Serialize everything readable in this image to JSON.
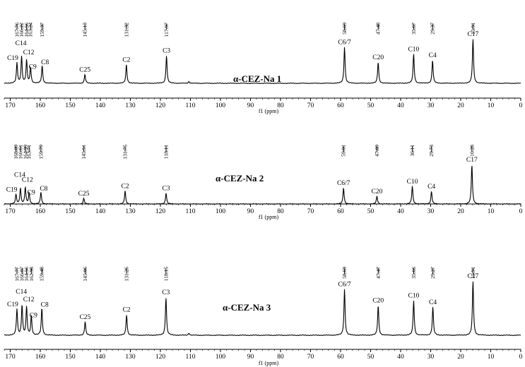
{
  "chart_data": [
    {
      "type": "line",
      "title": "α-CEZ-Na 1",
      "xlabel": "f1 (ppm)",
      "xlim": [
        172,
        0
      ],
      "xticks": [
        170,
        160,
        150,
        140,
        130,
        120,
        110,
        100,
        90,
        80,
        70,
        60,
        50,
        40,
        30,
        20,
        10,
        0
      ],
      "peaks": [
        {
          "label": "C19",
          "ppm": 167.76,
          "tick": "167.76",
          "h": 0.46
        },
        {
          "label": "C14",
          "ppm": 166.22,
          "tick": "166.22",
          "h": 0.6
        },
        {
          "label": "C12",
          "ppm": 164.56,
          "tick": "164.56",
          "h": 0.52
        },
        {
          "label": "C9",
          "ppm": 163.24,
          "tick": "163.24",
          "h": 0.36
        },
        {
          "label": "C8",
          "ppm": 159.37,
          "tick": "159.37",
          "h": 0.4
        },
        {
          "label": "C25",
          "ppm": 145.13,
          "tick": "145.13",
          "h": 0.2
        },
        {
          "label": "C2",
          "ppm": 131.32,
          "tick": "131.32",
          "h": 0.42
        },
        {
          "label": "C3",
          "ppm": 117.97,
          "tick": "117.97",
          "h": 0.63
        },
        {
          "label": "",
          "ppm": 110.5,
          "tick": "",
          "h": 0.04
        },
        {
          "label": "C6/7",
          "ppm": 58.69,
          "tick": "58.69",
          "h": 0.82
        },
        {
          "label": "C20",
          "ppm": 47.48,
          "tick": "47.48",
          "h": 0.48
        },
        {
          "label": "C10",
          "ppm": 35.67,
          "tick": "35.67",
          "h": 0.66
        },
        {
          "label": "C4",
          "ppm": 29.37,
          "tick": "29.37",
          "h": 0.52
        },
        {
          "label": "C17",
          "ppm": 15.91,
          "tick": "15.91",
          "h": 1.0
        }
      ]
    },
    {
      "type": "line",
      "title": "α-CEZ-Na 2",
      "xlabel": "f1 (ppm)",
      "xlim": [
        172,
        0
      ],
      "xticks": [
        170,
        160,
        150,
        140,
        130,
        120,
        110,
        100,
        90,
        80,
        70,
        60,
        50,
        40,
        30,
        20,
        10,
        0
      ],
      "peaks": [
        {
          "label": "C19",
          "ppm": 168.09,
          "tick": "168.09",
          "h": 0.24
        },
        {
          "label": "C14",
          "ppm": 166.61,
          "tick": "166.61",
          "h": 0.4
        },
        {
          "label": "C12",
          "ppm": 164.99,
          "tick": "164.99",
          "h": 0.42
        },
        {
          "label": "C9",
          "ppm": 163.71,
          "tick": "163.71",
          "h": 0.28
        },
        {
          "label": "C8",
          "ppm": 159.79,
          "tick": "159.79",
          "h": 0.3
        },
        {
          "label": "C25",
          "ppm": 145.51,
          "tick": "145.51",
          "h": 0.14
        },
        {
          "label": "C2",
          "ppm": 131.75,
          "tick": "131.75",
          "h": 0.33
        },
        {
          "label": "C3",
          "ppm": 118.11,
          "tick": "118.11",
          "h": 0.28
        },
        {
          "label": "C6/7",
          "ppm": 59.01,
          "tick": "59.01",
          "h": 0.41
        },
        {
          "label": "C20",
          "ppm": 47.89,
          "tick": "47.89",
          "h": 0.2
        },
        {
          "label": "C10",
          "ppm": 36.11,
          "tick": "36.11",
          "h": 0.45
        },
        {
          "label": "C4",
          "ppm": 29.73,
          "tick": "29.73",
          "h": 0.32
        },
        {
          "label": "C17",
          "ppm": 16.28,
          "tick": "16.28",
          "h": 1.0
        }
      ]
    },
    {
      "type": "line",
      "title": "α-CEZ-Na 3",
      "xlabel": "f1 (ppm)",
      "xlim": [
        172,
        0
      ],
      "xticks": [
        170,
        160,
        150,
        140,
        130,
        120,
        110,
        100,
        90,
        80,
        70,
        60,
        50,
        40,
        30,
        20,
        10,
        0
      ],
      "peaks": [
        {
          "label": "C19",
          "ppm": 167.77,
          "tick": "167.77",
          "h": 0.48
        },
        {
          "label": "C14",
          "ppm": 166.07,
          "tick": "166.07",
          "h": 0.56
        },
        {
          "label": "C12",
          "ppm": 164.56,
          "tick": "164.56",
          "h": 0.52
        },
        {
          "label": "C9",
          "ppm": 162.98,
          "tick": "162.98",
          "h": 0.36
        },
        {
          "label": "C8",
          "ppm": 159.48,
          "tick": "159.48",
          "h": 0.5
        },
        {
          "label": "C25",
          "ppm": 145.06,
          "tick": "145.06",
          "h": 0.25
        },
        {
          "label": "C2",
          "ppm": 131.26,
          "tick": "131.26",
          "h": 0.38
        },
        {
          "label": "C3",
          "ppm": 118.15,
          "tick": "118.15",
          "h": 0.7
        },
        {
          "label": "",
          "ppm": 110.5,
          "tick": "",
          "h": 0.04
        },
        {
          "label": "C6/7",
          "ppm": 58.69,
          "tick": "58.69",
          "h": 0.85
        },
        {
          "label": "C20",
          "ppm": 47.47,
          "tick": "47.47",
          "h": 0.55
        },
        {
          "label": "C10",
          "ppm": 35.66,
          "tick": "35.66",
          "h": 0.64
        },
        {
          "label": "C4",
          "ppm": 29.27,
          "tick": "29.27",
          "h": 0.52
        },
        {
          "label": "C17",
          "ppm": 15.91,
          "tick": "15.91",
          "h": 1.0
        }
      ]
    }
  ]
}
